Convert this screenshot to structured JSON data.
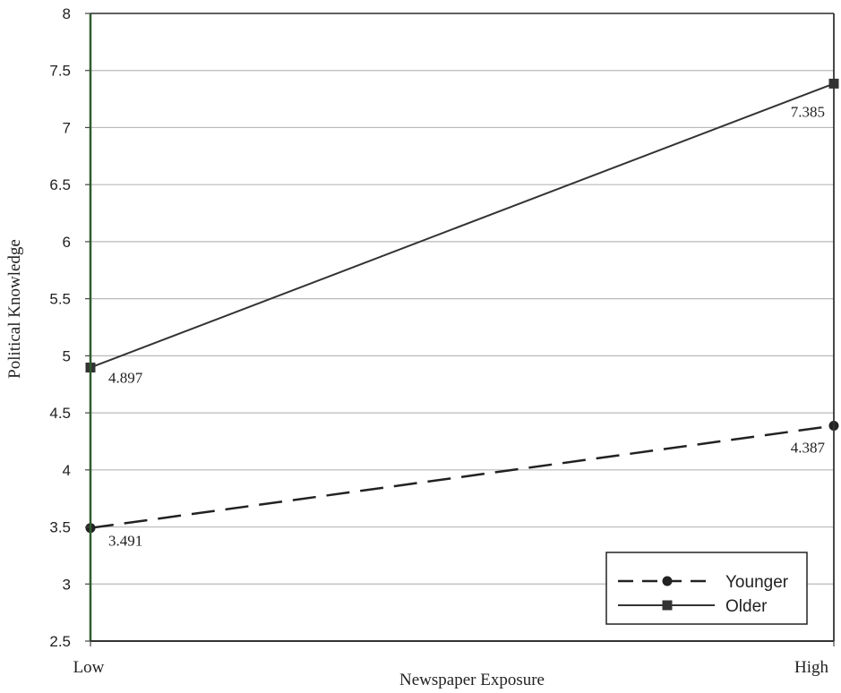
{
  "chart_data": {
    "type": "line",
    "title": "",
    "xlabel": "Newspaper Exposure",
    "ylabel": "Political Knowledge",
    "categories": [
      "Low",
      "High"
    ],
    "ylim": [
      2.5,
      8
    ],
    "yticks": [
      "2.5",
      "3",
      "3.5",
      "4",
      "4.5",
      "5",
      "5.5",
      "6",
      "6.5",
      "7",
      "7.5",
      "8"
    ],
    "grid": true,
    "legend_position": "bottom-right",
    "series": [
      {
        "name": "Younger",
        "values": [
          3.491,
          4.387
        ],
        "labels": [
          "3.491",
          "4.387"
        ],
        "line_style": "dashed",
        "marker": "circle",
        "color": "#222222"
      },
      {
        "name": "Older",
        "values": [
          4.897,
          7.385
        ],
        "labels": [
          "4.897",
          "7.385"
        ],
        "line_style": "solid",
        "marker": "square",
        "color": "#333333"
      }
    ],
    "colors": {
      "axis": "#2f5a2f",
      "grid": "#b9b9b9",
      "text": "#222222"
    }
  }
}
